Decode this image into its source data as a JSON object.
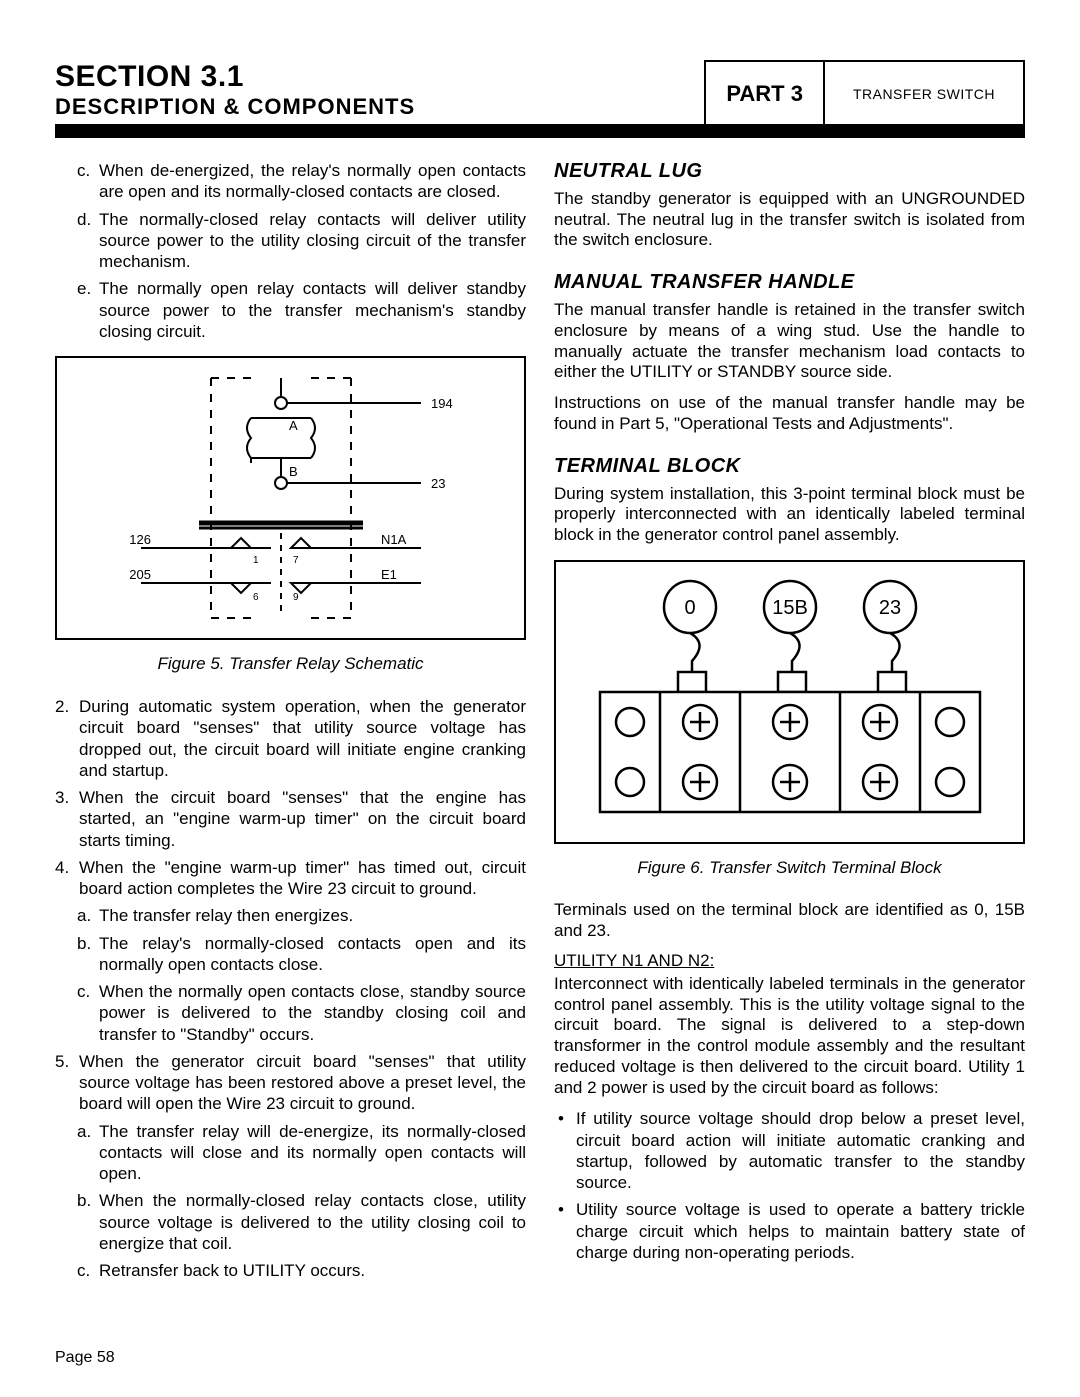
{
  "header": {
    "section_line1": "SECTION 3.1",
    "section_line2": "DESCRIPTION & COMPONENTS",
    "part": "PART 3",
    "ts": "TRANSFER SWITCH"
  },
  "left_top_items": [
    {
      "m": "c.",
      "t": "When de-energized, the relay's normally open contacts are open and its normally-closed contacts are closed."
    },
    {
      "m": "d.",
      "t": "The normally-closed relay contacts will deliver utility source power to the utility closing circuit of the transfer mechanism."
    },
    {
      "m": "e.",
      "t": "The normally open relay contacts will deliver standby source power to the transfer mechanism's standby closing circuit."
    }
  ],
  "fig5": {
    "caption": "Figure 5. Transfer Relay Schematic",
    "labels": {
      "l194": "194",
      "l23": "23",
      "l126": "126",
      "l205": "205",
      "lA": "A",
      "lB": "B",
      "lN1A": "N1A",
      "lE1": "E1",
      "n1": "1",
      "n7": "7",
      "n6": "6",
      "n9": "9"
    }
  },
  "left_mid_items": [
    {
      "m": "2.",
      "t": "During automatic system operation, when the generator circuit board \"senses\" that utility source voltage has dropped out, the circuit board will initiate engine cranking and startup."
    },
    {
      "m": "3.",
      "t": "When the circuit board \"senses\" that the engine has started, an \"engine warm-up timer\" on the circuit board starts timing."
    },
    {
      "m": "4.",
      "t": "When the \"engine warm-up timer\" has timed out, circuit board action completes the Wire 23 circuit to ground."
    }
  ],
  "left_mid_sub": [
    {
      "m": "a.",
      "t": "The transfer relay then energizes."
    },
    {
      "m": "b.",
      "t": "The relay's normally-closed contacts open and its normally open contacts close."
    },
    {
      "m": "c.",
      "t": "When the normally open contacts close, standby source power is delivered to the standby closing coil and transfer to \"Standby\" occurs."
    }
  ],
  "left_5": {
    "m": "5.",
    "t": "When the generator circuit board \"senses\" that utility source voltage has been restored above a preset level, the board will open the Wire 23 circuit to ground."
  },
  "left_5_sub": [
    {
      "m": "a.",
      "t": "The transfer relay will de-energize, its normally-closed contacts will close and its normally open contacts will open."
    },
    {
      "m": "b.",
      "t": "When the normally-closed relay contacts close, utility source voltage is delivered to the utility closing coil to energize that coil."
    },
    {
      "m": "c.",
      "t": "Retransfer back to UTILITY occurs."
    }
  ],
  "right": {
    "neutral_h": "NEUTRAL LUG",
    "neutral_p": "The standby generator is equipped with an UNGROUNDED neutral. The neutral lug in the transfer switch is isolated from the switch enclosure.",
    "mth_h": "MANUAL TRANSFER HANDLE",
    "mth_p1": "The manual transfer handle is retained in the transfer switch enclosure by means of a wing stud. Use the handle to manually actuate the transfer mechanism load contacts to either the UTILITY or STANDBY source side.",
    "mth_p2": "Instructions on use of the manual transfer handle may be found in Part 5, \"Operational Tests and Adjustments\".",
    "tb_h": "TERMINAL BLOCK",
    "tb_p1": "During system installation, this 3-point terminal block must be properly interconnected with an identically labeled terminal block in the generator control panel assembly.",
    "fig6_caption": "Figure 6. Transfer Switch Terminal Block",
    "fig6_labels": {
      "a": "0",
      "b": "15B",
      "c": "23"
    },
    "tb_p2": "Terminals used on the terminal block are identified as 0, 15B and 23.",
    "util_h": "UTILITY N1 AND N2:",
    "util_p": "Interconnect with identically labeled terminals in the generator control panel assembly. This is the utility voltage signal to the circuit board. The signal is delivered to a step-down transformer in the control module assembly and the resultant reduced voltage is then delivered to the circuit board. Utility 1 and 2 power is used by the circuit board as follows:",
    "util_bullets": [
      "If utility source voltage should drop below a preset level, circuit board action will initiate automatic cranking and startup, followed by automatic transfer to the standby source.",
      "Utility source voltage is used to operate a battery trickle charge circuit which helps to maintain battery state of charge during non-operating periods."
    ]
  },
  "page": "Page 58"
}
